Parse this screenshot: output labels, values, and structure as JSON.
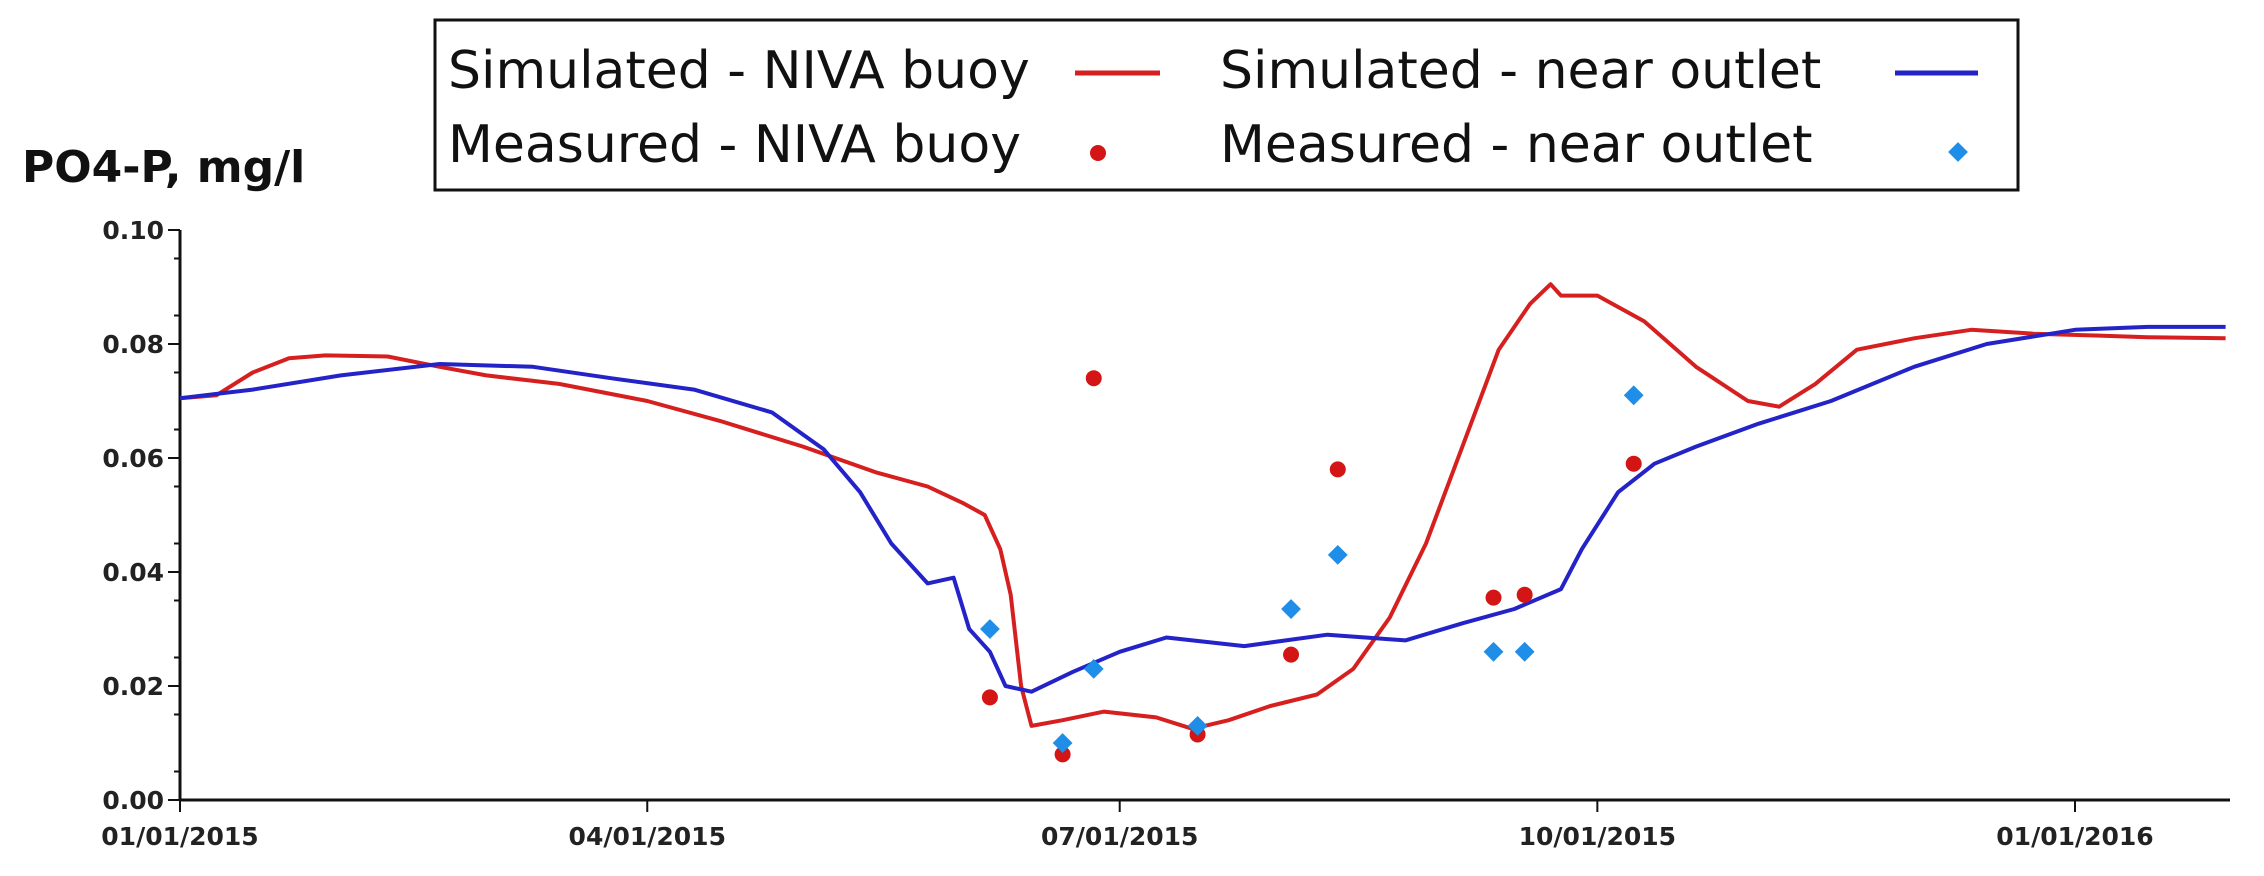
{
  "chart_data": {
    "type": "line",
    "title": "",
    "ylabel": "PO4-P, mg/l",
    "xlabel": "",
    "ylim": [
      0,
      0.1
    ],
    "xlim": [
      "2015-01-01",
      "2016-02-10"
    ],
    "grid": false,
    "legend_position": "top",
    "y_ticks": [
      "0.00",
      "0.02",
      "0.04",
      "0.06",
      "0.08",
      "0.10"
    ],
    "x_ticks": [
      {
        "date": "2015-01-01",
        "label": "01/01/2015"
      },
      {
        "date": "2015-04-01",
        "label": "04/01/2015"
      },
      {
        "date": "2015-07-01",
        "label": "07/01/2015"
      },
      {
        "date": "2015-10-01",
        "label": "10/01/2015"
      },
      {
        "date": "2016-01-01",
        "label": "01/01/2016"
      }
    ],
    "series": [
      {
        "name": "Simulated - NIVA buoy",
        "kind": "line",
        "color": "#d62020",
        "points": [
          [
            "2015-01-01",
            0.0705
          ],
          [
            "2015-01-08",
            0.071
          ],
          [
            "2015-01-15",
            0.075
          ],
          [
            "2015-01-22",
            0.0775
          ],
          [
            "2015-01-29",
            0.078
          ],
          [
            "2015-02-10",
            0.0778
          ],
          [
            "2015-02-20",
            0.076
          ],
          [
            "2015-03-01",
            0.0745
          ],
          [
            "2015-03-15",
            0.073
          ],
          [
            "2015-04-01",
            0.07
          ],
          [
            "2015-04-15",
            0.0665
          ],
          [
            "2015-05-01",
            0.062
          ],
          [
            "2015-05-15",
            0.0575
          ],
          [
            "2015-05-25",
            0.055
          ],
          [
            "2015-06-01",
            0.052
          ],
          [
            "2015-06-05",
            0.05
          ],
          [
            "2015-06-08",
            0.044
          ],
          [
            "2015-06-10",
            0.036
          ],
          [
            "2015-06-12",
            0.02
          ],
          [
            "2015-06-14",
            0.013
          ],
          [
            "2015-06-20",
            0.014
          ],
          [
            "2015-06-28",
            0.0155
          ],
          [
            "2015-07-08",
            0.0145
          ],
          [
            "2015-07-15",
            0.0125
          ],
          [
            "2015-07-22",
            0.014
          ],
          [
            "2015-07-30",
            0.0165
          ],
          [
            "2015-08-08",
            0.0185
          ],
          [
            "2015-08-15",
            0.023
          ],
          [
            "2015-08-22",
            0.032
          ],
          [
            "2015-08-29",
            0.045
          ],
          [
            "2015-09-05",
            0.062
          ],
          [
            "2015-09-12",
            0.079
          ],
          [
            "2015-09-18",
            0.087
          ],
          [
            "2015-09-22",
            0.0905
          ],
          [
            "2015-09-24",
            0.0885
          ],
          [
            "2015-10-01",
            0.0885
          ],
          [
            "2015-10-10",
            0.084
          ],
          [
            "2015-10-20",
            0.076
          ],
          [
            "2015-10-30",
            0.07
          ],
          [
            "2015-11-05",
            0.069
          ],
          [
            "2015-11-12",
            0.073
          ],
          [
            "2015-11-20",
            0.079
          ],
          [
            "2015-12-01",
            0.081
          ],
          [
            "2015-12-12",
            0.0825
          ],
          [
            "2015-12-24",
            0.0818
          ],
          [
            "2016-01-05",
            0.0815
          ],
          [
            "2016-01-15",
            0.0812
          ],
          [
            "2016-01-30",
            0.081
          ]
        ]
      },
      {
        "name": "Simulated - near outlet",
        "kind": "line",
        "color": "#2323c8",
        "points": [
          [
            "2015-01-01",
            0.0705
          ],
          [
            "2015-01-15",
            0.072
          ],
          [
            "2015-02-01",
            0.0745
          ],
          [
            "2015-02-20",
            0.0765
          ],
          [
            "2015-03-10",
            0.076
          ],
          [
            "2015-03-25",
            0.074
          ],
          [
            "2015-04-10",
            0.072
          ],
          [
            "2015-04-25",
            0.068
          ],
          [
            "2015-05-05",
            0.0615
          ],
          [
            "2015-05-12",
            0.054
          ],
          [
            "2015-05-18",
            0.045
          ],
          [
            "2015-05-25",
            0.038
          ],
          [
            "2015-05-30",
            0.039
          ],
          [
            "2015-06-02",
            0.03
          ],
          [
            "2015-06-06",
            0.026
          ],
          [
            "2015-06-09",
            0.02
          ],
          [
            "2015-06-14",
            0.019
          ],
          [
            "2015-06-22",
            0.0225
          ],
          [
            "2015-07-01",
            0.026
          ],
          [
            "2015-07-10",
            0.0285
          ],
          [
            "2015-07-15",
            0.028
          ],
          [
            "2015-07-25",
            0.027
          ],
          [
            "2015-08-10",
            0.029
          ],
          [
            "2015-08-25",
            0.028
          ],
          [
            "2015-09-05",
            0.031
          ],
          [
            "2015-09-15",
            0.0335
          ],
          [
            "2015-09-24",
            0.037
          ],
          [
            "2015-09-28",
            0.044
          ],
          [
            "2015-10-05",
            0.054
          ],
          [
            "2015-10-12",
            0.059
          ],
          [
            "2015-10-20",
            0.062
          ],
          [
            "2015-11-01",
            0.066
          ],
          [
            "2015-11-15",
            0.07
          ],
          [
            "2015-12-01",
            0.076
          ],
          [
            "2015-12-15",
            0.08
          ],
          [
            "2016-01-01",
            0.0825
          ],
          [
            "2016-01-15",
            0.083
          ],
          [
            "2016-01-30",
            0.083
          ]
        ]
      },
      {
        "name": "Measured - NIVA buoy",
        "kind": "scatter",
        "color": "#d41515",
        "marker": "circle",
        "points": [
          [
            "2015-06-06",
            0.018
          ],
          [
            "2015-06-20",
            0.008
          ],
          [
            "2015-06-26",
            0.074
          ],
          [
            "2015-07-16",
            0.0115
          ],
          [
            "2015-08-03",
            0.0255
          ],
          [
            "2015-08-12",
            0.058
          ],
          [
            "2015-09-11",
            0.0355
          ],
          [
            "2015-09-17",
            0.036
          ],
          [
            "2015-10-08",
            0.059
          ]
        ]
      },
      {
        "name": "Measured - near outlet",
        "kind": "scatter",
        "color": "#1e8ee8",
        "marker": "diamond",
        "points": [
          [
            "2015-06-06",
            0.03
          ],
          [
            "2015-06-20",
            0.01
          ],
          [
            "2015-06-26",
            0.023
          ],
          [
            "2015-07-16",
            0.013
          ],
          [
            "2015-08-03",
            0.0335
          ],
          [
            "2015-08-12",
            0.043
          ],
          [
            "2015-09-11",
            0.026
          ],
          [
            "2015-09-17",
            0.026
          ],
          [
            "2015-10-08",
            0.071
          ]
        ]
      }
    ]
  }
}
